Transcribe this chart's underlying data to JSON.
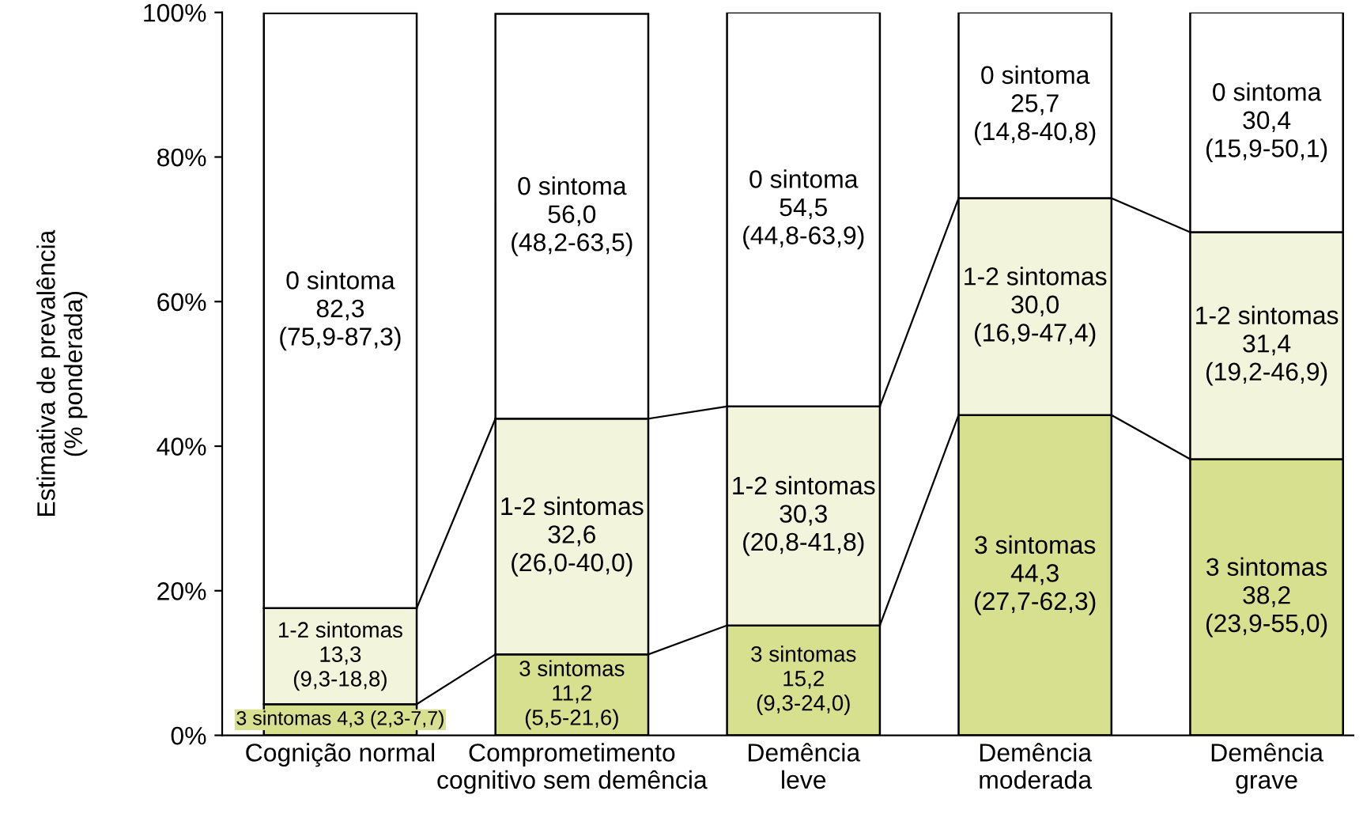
{
  "chart_data": {
    "type": "bar",
    "stacked": true,
    "ylabel": "Estimativa de prevalência\n(% ponderada)",
    "categories": [
      "Cognição normal",
      "Comprometimento\ncognitivo sem demência",
      "Demência\nleve",
      "Demência\nmoderada",
      "Demência\ngrave"
    ],
    "series": [
      {
        "color": "#d6e08e",
        "values": [
          4.3,
          11.2,
          15.2,
          44.3,
          38.2
        ],
        "value_labels": [
          "3 sintomas 4,3 (2,3-7,7)",
          "3 sintomas\n11,2\n(5,5-21,6)",
          "3 sintomas\n15,2\n(9,3-24,0)",
          "3 sintomas\n44,3\n(27,7-62,3)",
          "3 sintomas\n38,2\n(23,9-55,0)"
        ]
      },
      {
        "color": "#f2f5dc",
        "values": [
          13.3,
          32.6,
          30.3,
          30.0,
          31.4
        ],
        "value_labels": [
          "1-2 sintomas\n13,3\n(9,3-18,8)",
          "1-2 sintomas\n32,6\n(26,0-40,0)",
          "1-2 sintomas\n30,3\n(20,8-41,8)",
          "1-2 sintomas\n30,0\n(16,9-47,4)",
          "1-2 sintomas\n31,4\n(19,2-46,9)"
        ]
      },
      {
        "color": "#ffffff",
        "values": [
          82.3,
          56.0,
          54.5,
          25.7,
          30.4
        ],
        "value_labels": [
          "0 sintoma\n82,3\n(75,9-87,3)",
          "0 sintoma\n56,0\n(48,2-63,5)",
          "0 sintoma\n54,5\n(44,8-63,9)",
          "0 sintoma\n25,7\n(14,8-40,8)",
          "0 sintoma\n30,4\n(15,9-50,1)"
        ]
      }
    ],
    "ylim": [
      0,
      100
    ],
    "yticks": [
      {
        "value": 0,
        "label": "0%"
      },
      {
        "value": 20,
        "label": "20%"
      },
      {
        "value": 40,
        "label": "40%"
      },
      {
        "value": 60,
        "label": "60%"
      },
      {
        "value": 80,
        "label": "80%"
      },
      {
        "value": 100,
        "label": "100%"
      }
    ],
    "grid": false
  }
}
